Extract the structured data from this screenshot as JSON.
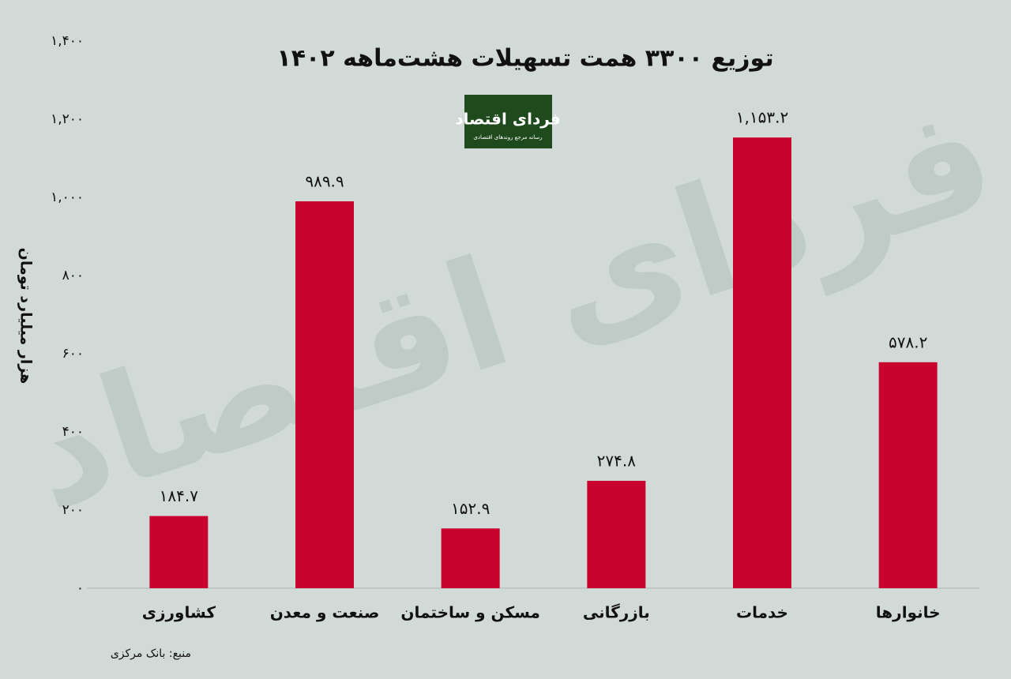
{
  "chart_data": {
    "type": "bar",
    "title": "توزیع ۳۳۰۰ همت تسهیلات هشت‌ماهه ۱۴۰۲",
    "y_label": "هزار میلیارد تومان",
    "logo": {
      "name": "فردای اقتصاد",
      "tagline": "رسانه مرجع روندهای اقتصادی"
    },
    "watermark": "فردای اقتصاد",
    "source": "منبع: بانک مرکزی",
    "categories": [
      "کشاورزی",
      "صنعت و معدن",
      "مسکن و ساختمان",
      "بازرگانی",
      "خدمات",
      "خانوارها"
    ],
    "values": [
      184.7,
      989.9,
      152.9,
      274.8,
      1153.2,
      578.2
    ],
    "value_labels": [
      "۱۸۴.۷",
      "۹۸۹.۹",
      "۱۵۲.۹",
      "۲۷۴.۸",
      "۱,۱۵۳.۲",
      "۵۷۸.۲"
    ],
    "color": "#c8032e",
    "ylim": [
      0,
      1400
    ],
    "yticks": [
      {
        "value": 0,
        "label": "۰"
      },
      {
        "value": 200,
        "label": "۲۰۰"
      },
      {
        "value": 400,
        "label": "۴۰۰"
      },
      {
        "value": 600,
        "label": "۶۰۰"
      },
      {
        "value": 800,
        "label": "۸۰۰"
      },
      {
        "value": 1000,
        "label": "۱,۰۰۰"
      },
      {
        "value": 1200,
        "label": "۱,۲۰۰"
      },
      {
        "value": 1400,
        "label": "۱,۴۰۰"
      }
    ],
    "grid": false
  }
}
